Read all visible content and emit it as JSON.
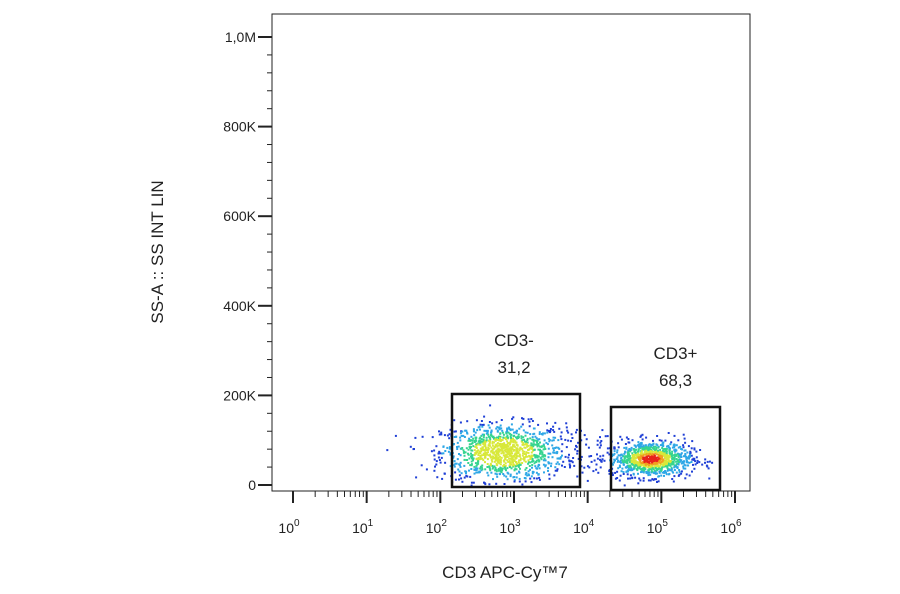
{
  "chart_data": {
    "type": "scatter",
    "title": "",
    "xlabel": "CD3 APC-Cy™7",
    "ylabel": "SS-A :: SS INT LIN",
    "x_scale": "log",
    "xlim": [
      0.35,
      1000000
    ],
    "ylim": [
      -5000,
      1050000
    ],
    "x_ticks": [
      {
        "base": "10",
        "exp": "0",
        "value": 1
      },
      {
        "base": "10",
        "exp": "1",
        "value": 10
      },
      {
        "base": "10",
        "exp": "2",
        "value": 100
      },
      {
        "base": "10",
        "exp": "3",
        "value": 1000
      },
      {
        "base": "10",
        "exp": "4",
        "value": 10000
      },
      {
        "base": "10",
        "exp": "5",
        "value": 100000
      },
      {
        "base": "10",
        "exp": "6",
        "value": 1000000
      }
    ],
    "y_ticks": [
      {
        "label": "0",
        "value": 0
      },
      {
        "label": "200K",
        "value": 200000
      },
      {
        "label": "400K",
        "value": 400000
      },
      {
        "label": "600K",
        "value": 600000
      },
      {
        "label": "800K",
        "value": 800000
      },
      {
        "label": "1,0M",
        "value": 1000000
      }
    ],
    "gates": [
      {
        "name": "CD3-",
        "percent": "31,2",
        "x_range": [
          120,
          6000
        ],
        "y_range": [
          0,
          200000
        ]
      },
      {
        "name": "CD3+",
        "percent": "68,3",
        "x_range": [
          12000,
          350000
        ],
        "y_range": [
          0,
          175000
        ]
      }
    ],
    "populations": [
      {
        "name": "CD3-",
        "x_center": 700,
        "x_spread_decades": 0.42,
        "y_center": 75000,
        "y_spread": 32000
      },
      {
        "name": "CD3+",
        "x_center": 70000,
        "x_spread_decades": 0.28,
        "y_center": 60000,
        "y_spread": 20000
      }
    ],
    "density_colors": [
      "#1f3fd6",
      "#2ea7e6",
      "#35d48f",
      "#d8e83a",
      "#f0a020",
      "#e8231c"
    ],
    "grid": false
  }
}
